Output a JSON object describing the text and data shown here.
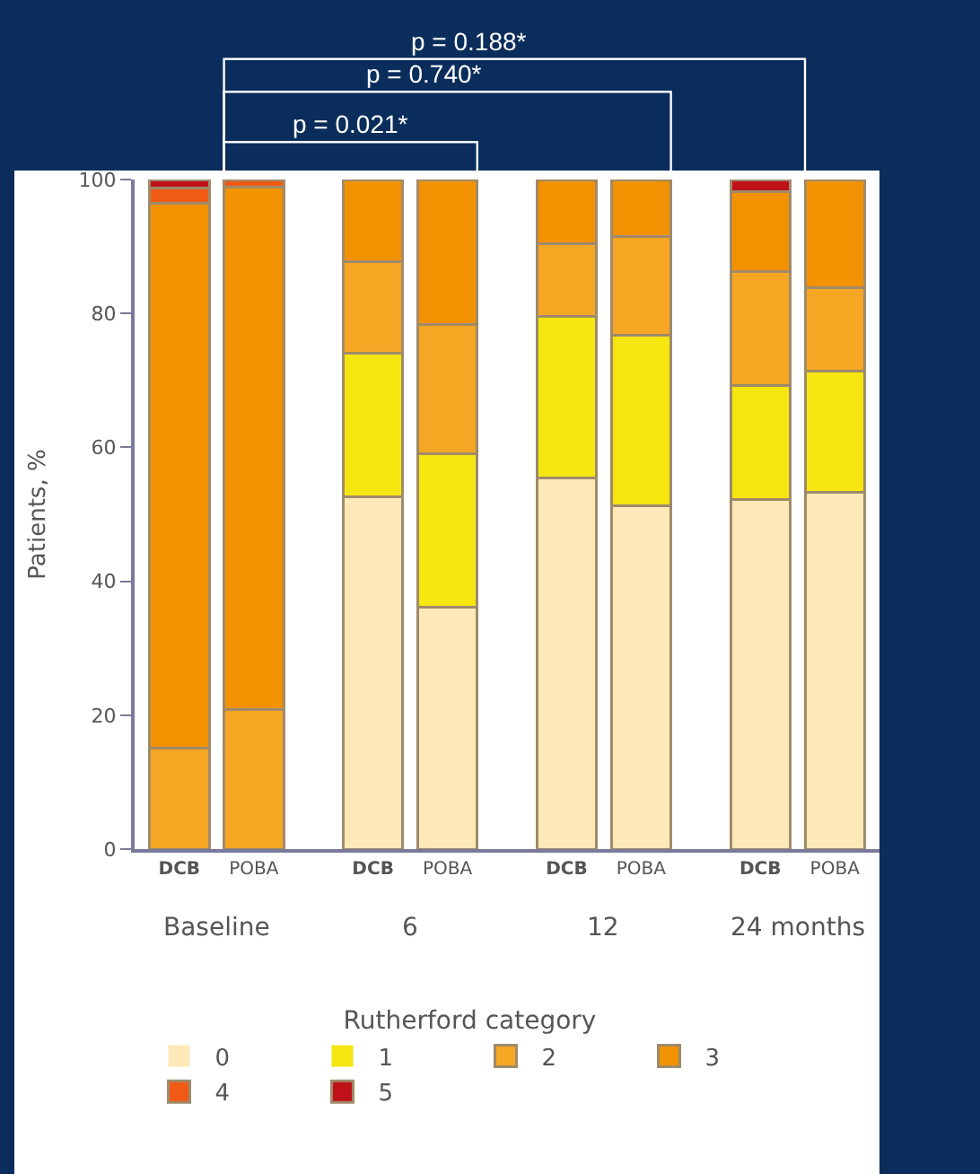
{
  "chart_data": {
    "type": "bar",
    "stacked": true,
    "ylabel": "Patients, %",
    "legend_title": "Rutherford category",
    "categories": [
      "DCB",
      "POBA",
      "DCB",
      "POBA",
      "DCB",
      "POBA",
      "DCB",
      "POBA"
    ],
    "series": [
      {
        "name": "0",
        "color": "#fde9b8",
        "values": [
          0,
          0,
          52.6,
          36.1,
          55.4,
          51.3,
          52.2,
          53.3
        ]
      },
      {
        "name": "1",
        "color": "#f5e60f",
        "values": [
          0,
          0,
          21.5,
          23,
          24.2,
          25.5,
          17,
          18.1
        ]
      },
      {
        "name": "2",
        "color": "#f5a623",
        "values": [
          15.1,
          20.9,
          13.6,
          19.3,
          10.8,
          14.7,
          17.1,
          12.5
        ]
      },
      {
        "name": "3",
        "color": "#f39200",
        "values": [
          81.3,
          78,
          12.3,
          21.6,
          9.6,
          8.5,
          11.9,
          16.1
        ]
      },
      {
        "name": "4",
        "color": "#f05a14",
        "values": [
          2.3,
          1.1,
          0,
          0,
          0,
          0,
          0,
          0
        ]
      },
      {
        "name": "5",
        "color": "#c0101a",
        "values": [
          1.3,
          0,
          0,
          0,
          0,
          0,
          1.8,
          0
        ]
      }
    ],
    "annotations": [
      "Baseline",
      "6",
      "12",
      "24 months",
      "p = 0.021*",
      "p = 0.740*",
      "p = 0.188*"
    ],
    "ylim": [
      0,
      100
    ],
    "yticks": [
      0,
      20,
      40,
      60,
      80,
      100
    ],
    "legend": "bottom"
  }
}
